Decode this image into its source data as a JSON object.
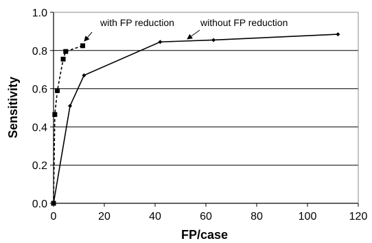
{
  "chart_data": {
    "type": "line",
    "xlabel": "FP/case",
    "ylabel": "Sensitivity",
    "xlim": [
      0,
      120
    ],
    "ylim": [
      0,
      1.0
    ],
    "x_ticks": [
      "0",
      "20",
      "40",
      "60",
      "80",
      "100",
      "120"
    ],
    "y_ticks": [
      "0.0",
      "0.2",
      "0.4",
      "0.6",
      "0.8",
      "1.0"
    ],
    "grid": "horizontal",
    "series": [
      {
        "name": "with FP reduction",
        "style": "dashed",
        "marker": "square",
        "color": "#000000",
        "points": [
          {
            "x": 0,
            "y": 0.0
          },
          {
            "x": 0.5,
            "y": 0.465
          },
          {
            "x": 1.5,
            "y": 0.59
          },
          {
            "x": 3.8,
            "y": 0.755
          },
          {
            "x": 4.8,
            "y": 0.795
          },
          {
            "x": 11.5,
            "y": 0.825
          }
        ]
      },
      {
        "name": "without FP reduction",
        "style": "solid",
        "marker": "diamond",
        "color": "#000000",
        "points": [
          {
            "x": 0,
            "y": 0.0
          },
          {
            "x": 6.5,
            "y": 0.51
          },
          {
            "x": 12,
            "y": 0.67
          },
          {
            "x": 42,
            "y": 0.845
          },
          {
            "x": 63,
            "y": 0.855
          },
          {
            "x": 112,
            "y": 0.885
          }
        ]
      }
    ],
    "annotations": [
      {
        "text": "with FP reduction",
        "series": 0
      },
      {
        "text": "without FP reduction",
        "series": 1
      }
    ]
  }
}
